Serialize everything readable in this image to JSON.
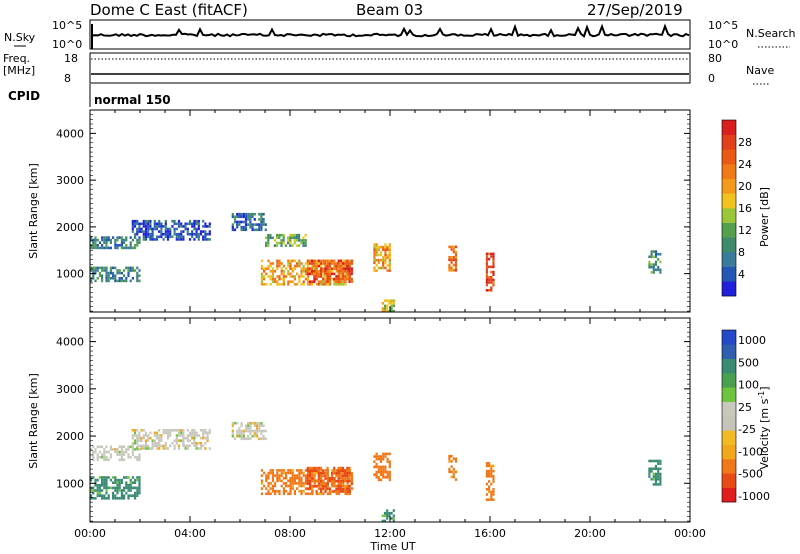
{
  "header": {
    "station": "Dome C East (fitACF)",
    "beam": "Beam 03",
    "date": "27/Sep/2019"
  },
  "summary_panels": {
    "nsky_label": "N.Sky",
    "nsky_ticks": [
      "10^5",
      "10^0"
    ],
    "nsearch_label": "N.Search",
    "nsearch_ticks": [
      "10^5",
      "10^0"
    ],
    "freq_label": "Freq.",
    "freq_unit": "[MHz]",
    "freq_ticks": [
      "18",
      "8"
    ],
    "nave_label": "Nave",
    "nave_ticks": [
      "80",
      "0"
    ],
    "cpid_label": "CPID",
    "cpid_value": "normal 150"
  },
  "colors": {
    "power_scale": [
      "#1f1fdc",
      "#2456b4",
      "#3a7a9a",
      "#3f8a6a",
      "#54a04c",
      "#9cc63a",
      "#f2c21e",
      "#f39a1c",
      "#f07a17",
      "#ea5a16",
      "#e2401a",
      "#d81e1e"
    ],
    "velocity_scale": [
      "#e01c1c",
      "#e84a16",
      "#f07818",
      "#f29a1a",
      "#f2ba24",
      "#c4c4b8",
      "#c8c8bc",
      "#6ec43e",
      "#48a050",
      "#3a8a74",
      "#2f5fae",
      "#2448c8"
    ],
    "trace": "#000000"
  },
  "chart_data": [
    {
      "type": "heatmap",
      "title": "",
      "ylabel": "Slant Range [km]",
      "xlabel": "",
      "xlim": [
        "00:00",
        "24:00"
      ],
      "ylim": [
        180,
        4500
      ],
      "yticks": [
        "1000",
        "2000",
        "3000",
        "4000"
      ],
      "colorbar": {
        "label": "Power [dB]",
        "ticks": [
          "28",
          "24",
          "20",
          "16",
          "12",
          "8",
          "4"
        ],
        "range": [
          0,
          32
        ]
      },
      "echo_regions": [
        {
          "t_start": "00:00",
          "t_end": "02:00",
          "range_km": [
            1550,
            1800
          ],
          "power_db": 8
        },
        {
          "t_start": "00:00",
          "t_end": "02:00",
          "range_km": [
            850,
            1150
          ],
          "power_db": 8
        },
        {
          "t_start": "01:40",
          "t_end": "04:50",
          "range_km": [
            1750,
            2150
          ],
          "power_db": 4
        },
        {
          "t_start": "05:40",
          "t_end": "07:00",
          "range_km": [
            1950,
            2300
          ],
          "power_db": 6
        },
        {
          "t_start": "06:50",
          "t_end": "10:30",
          "range_km": [
            750,
            1300
          ],
          "power_db": 20
        },
        {
          "t_start": "08:40",
          "t_end": "10:30",
          "range_km": [
            800,
            1300
          ],
          "power_db": 26
        },
        {
          "t_start": "07:00",
          "t_end": "08:40",
          "range_km": [
            1600,
            1850
          ],
          "power_db": 12
        },
        {
          "t_start": "11:20",
          "t_end": "12:00",
          "range_km": [
            1050,
            1650
          ],
          "power_db": 20
        },
        {
          "t_start": "11:40",
          "t_end": "12:10",
          "range_km": [
            200,
            450
          ],
          "power_db": 16
        },
        {
          "t_start": "14:20",
          "t_end": "14:40",
          "range_km": [
            1050,
            1600
          ],
          "power_db": 24
        },
        {
          "t_start": "15:50",
          "t_end": "16:10",
          "range_km": [
            650,
            1450
          ],
          "power_db": 28
        },
        {
          "t_start": "22:20",
          "t_end": "22:50",
          "range_km": [
            1000,
            1500
          ],
          "power_db": 10
        }
      ]
    },
    {
      "type": "heatmap",
      "title": "",
      "ylabel": "Slant Range [km]",
      "xlabel": "Time UT",
      "xlim": [
        "00:00",
        "24:00"
      ],
      "xticks": [
        "00:00",
        "04:00",
        "08:00",
        "12:00",
        "16:00",
        "20:00",
        "00:00"
      ],
      "ylim": [
        180,
        4500
      ],
      "yticks": [
        "1000",
        "2000",
        "3000",
        "4000"
      ],
      "colorbar": {
        "label": "Velocity [m s^-1]",
        "ticks": [
          "1000",
          "500",
          "100",
          "25",
          "-25",
          "-100",
          "-500",
          "-1000"
        ]
      },
      "echo_regions": [
        {
          "t_start": "00:00",
          "t_end": "02:00",
          "range_km": [
            1500,
            1800
          ],
          "velocity_ms": 0
        },
        {
          "t_start": "00:00",
          "t_end": "02:00",
          "range_km": [
            700,
            1150
          ],
          "velocity_ms": 200
        },
        {
          "t_start": "01:40",
          "t_end": "04:50",
          "range_km": [
            1750,
            2150
          ],
          "velocity_ms": 0
        },
        {
          "t_start": "05:40",
          "t_end": "07:00",
          "range_km": [
            1950,
            2300
          ],
          "velocity_ms": 0
        },
        {
          "t_start": "06:50",
          "t_end": "10:30",
          "range_km": [
            750,
            1300
          ],
          "velocity_ms": -200
        },
        {
          "t_start": "08:40",
          "t_end": "10:30",
          "range_km": [
            800,
            1350
          ],
          "velocity_ms": -600
        },
        {
          "t_start": "11:20",
          "t_end": "12:00",
          "range_km": [
            1050,
            1650
          ],
          "velocity_ms": -300
        },
        {
          "t_start": "11:40",
          "t_end": "12:10",
          "range_km": [
            200,
            450
          ],
          "velocity_ms": 150
        },
        {
          "t_start": "14:20",
          "t_end": "14:40",
          "range_km": [
            1050,
            1600
          ],
          "velocity_ms": -150
        },
        {
          "t_start": "15:50",
          "t_end": "16:10",
          "range_km": [
            650,
            1450
          ],
          "velocity_ms": -200
        },
        {
          "t_start": "22:20",
          "t_end": "22:50",
          "range_km": [
            1000,
            1500
          ],
          "velocity_ms": 200
        }
      ]
    }
  ]
}
